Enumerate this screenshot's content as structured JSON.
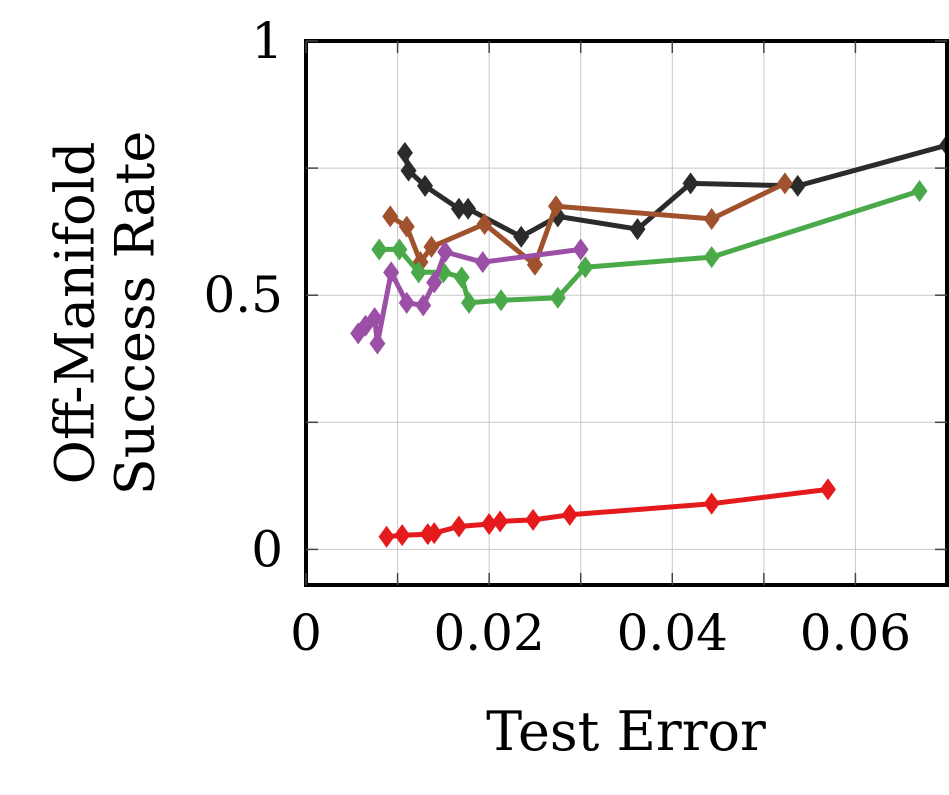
{
  "chart_data": {
    "type": "line",
    "xlabel": "Test Error",
    "ylabel_lines": [
      "Off-Manifold",
      "Success Rate"
    ],
    "xlim": [
      0,
      0.07
    ],
    "ylim": [
      -0.07,
      1
    ],
    "xticks": [
      0,
      0.02,
      0.04,
      0.06
    ],
    "xtick_labels": [
      "0",
      "0.02",
      "0.04",
      "0.06"
    ],
    "yticks": [
      0,
      0.5,
      1
    ],
    "ytick_labels": [
      "0",
      "0.5",
      "1"
    ],
    "minor_x_gridlines": [
      0.01,
      0.03,
      0.05
    ],
    "minor_y_gridlines": [
      0.25,
      0.75
    ],
    "grid": true,
    "marker": "diamond",
    "series": [
      {
        "color": "#2b2b2b",
        "x": [
          0.0108,
          0.0112,
          0.013,
          0.0167,
          0.0177,
          0.0235,
          0.0275,
          0.0362,
          0.042,
          0.0537,
          0.07
        ],
        "y": [
          0.78,
          0.745,
          0.715,
          0.67,
          0.67,
          0.615,
          0.655,
          0.63,
          0.72,
          0.715,
          0.795
        ]
      },
      {
        "color": "#a0522d",
        "x": [
          0.0092,
          0.011,
          0.0125,
          0.0137,
          0.0195,
          0.025,
          0.0273,
          0.0443,
          0.0523
        ],
        "y": [
          0.655,
          0.635,
          0.565,
          0.595,
          0.64,
          0.56,
          0.675,
          0.65,
          0.72
        ]
      },
      {
        "color": "#4aaa4a",
        "x": [
          0.008,
          0.0102,
          0.0123,
          0.015,
          0.017,
          0.0178,
          0.0213,
          0.0275,
          0.0305,
          0.0443,
          0.067
        ],
        "y": [
          0.59,
          0.59,
          0.545,
          0.545,
          0.535,
          0.485,
          0.49,
          0.495,
          0.555,
          0.575,
          0.705
        ]
      },
      {
        "color": "#9c4fa6",
        "x": [
          0.0057,
          0.0065,
          0.0075,
          0.0078,
          0.0093,
          0.011,
          0.0128,
          0.014,
          0.0152,
          0.0193,
          0.03
        ],
        "y": [
          0.425,
          0.44,
          0.455,
          0.405,
          0.545,
          0.485,
          0.48,
          0.525,
          0.585,
          0.565,
          0.59
        ]
      },
      {
        "color": "#e41a1c",
        "x": [
          0.0088,
          0.0105,
          0.0133,
          0.014,
          0.0167,
          0.02,
          0.0212,
          0.0248,
          0.0288,
          0.0443,
          0.057
        ],
        "y": [
          0.025,
          0.028,
          0.03,
          0.032,
          0.045,
          0.05,
          0.055,
          0.058,
          0.068,
          0.09,
          0.118
        ]
      }
    ]
  }
}
